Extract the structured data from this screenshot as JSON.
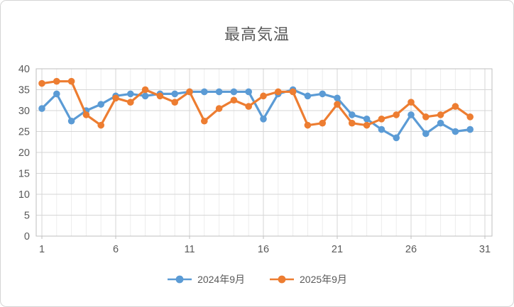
{
  "chart": {
    "title": "最高気温",
    "legend_items": [
      {
        "label": "2024年9月",
        "color": "#5B9BD5"
      },
      {
        "label": "2025年9月",
        "color": "#ED7D31"
      }
    ]
  },
  "chart_data": {
    "type": "line",
    "title": "最高気温",
    "x": [
      1,
      2,
      3,
      4,
      5,
      6,
      7,
      8,
      9,
      10,
      11,
      12,
      13,
      14,
      15,
      16,
      17,
      18,
      19,
      20,
      21,
      22,
      23,
      24,
      25,
      26,
      27,
      28,
      29,
      30
    ],
    "series": [
      {
        "name": "2024年9月",
        "color": "#5B9BD5",
        "values": [
          30.5,
          34,
          27.5,
          30,
          31.5,
          33.5,
          34,
          33.5,
          34,
          34,
          34.5,
          34.5,
          34.5,
          34.5,
          34.5,
          28,
          34,
          35,
          33.5,
          34,
          33,
          29,
          28,
          25.5,
          23.5,
          29,
          24.5,
          27,
          25,
          25.5
        ]
      },
      {
        "name": "2025年9月",
        "color": "#ED7D31",
        "values": [
          36.5,
          37,
          37,
          29,
          26.5,
          33,
          32,
          35,
          33.5,
          32,
          34.5,
          27.5,
          30.5,
          32.5,
          31,
          33.5,
          34.5,
          34.5,
          26.5,
          27,
          31.5,
          27,
          26.5,
          28,
          29,
          32,
          28.5,
          29,
          31,
          28.5
        ]
      }
    ],
    "xlabel": "",
    "ylabel": "",
    "xlim": [
      1,
      31
    ],
    "ylim": [
      0,
      40
    ],
    "xticks": [
      1,
      6,
      11,
      16,
      21,
      26,
      31
    ],
    "yticks": [
      0,
      5,
      10,
      15,
      20,
      25,
      30,
      35,
      40
    ],
    "grid": true,
    "legend_position": "bottom",
    "text_color": "#595959",
    "major_grid_color": "#d6d6d6",
    "minor_grid_color": "#ececec",
    "axis_line_color": "#bfbfbf"
  }
}
